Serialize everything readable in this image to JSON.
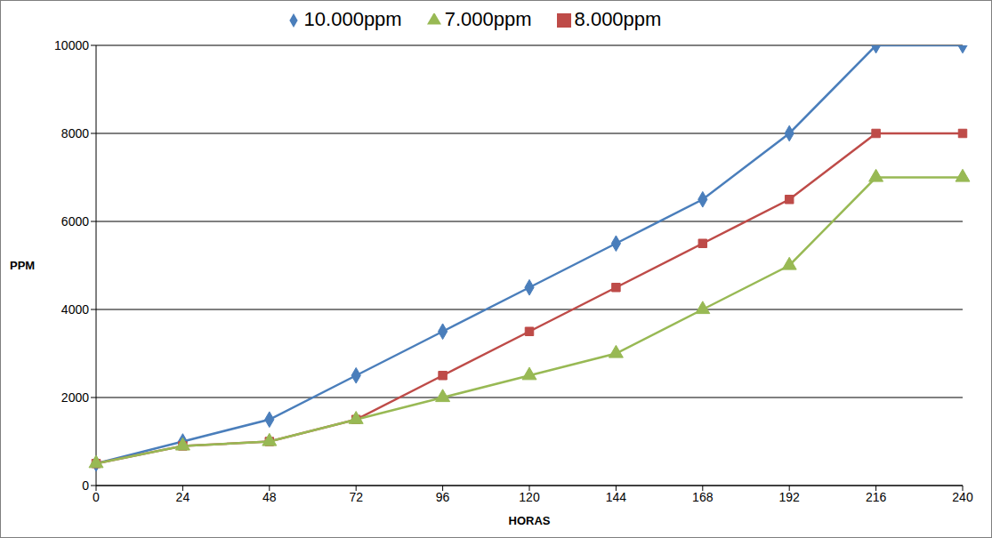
{
  "chart_data": {
    "type": "line",
    "x_label": "HORAS",
    "y_label": "PPM",
    "categories": [
      "0",
      "24",
      "48",
      "72",
      "96",
      "120",
      "144",
      "168",
      "192",
      "216",
      "240"
    ],
    "series": [
      {
        "name": "10.000ppm",
        "color": "#4a7ebb",
        "marker": "diamond",
        "values": [
          500,
          1000,
          1500,
          2500,
          3500,
          4500,
          5500,
          6500,
          8000,
          10000,
          10000
        ]
      },
      {
        "name": "8.000ppm",
        "color": "#be4b48",
        "marker": "square",
        "values": [
          500,
          900,
          1000,
          1500,
          2500,
          3500,
          4500,
          5500,
          6500,
          8000,
          8000
        ]
      },
      {
        "name": "7.000ppm",
        "color": "#98b954",
        "marker": "triangle",
        "values": [
          500,
          900,
          1000,
          1500,
          2000,
          2500,
          3000,
          4000,
          5000,
          7000,
          7000
        ]
      }
    ],
    "ylim": [
      0,
      10000
    ],
    "yticks": [
      0,
      2000,
      4000,
      6000,
      8000,
      10000
    ],
    "grid": true,
    "legend": "top"
  }
}
